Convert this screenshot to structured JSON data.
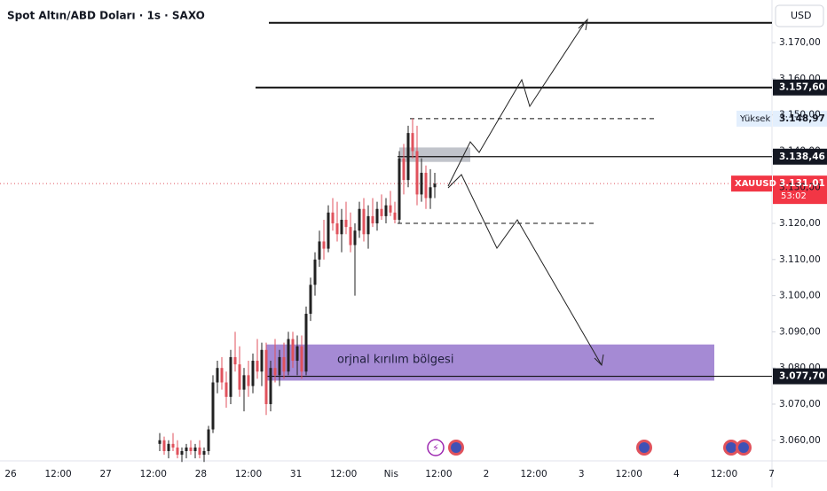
{
  "chart_data": {
    "type": "candlestick",
    "title": "Spot Altın/ABD Doları · 1s · SAXO",
    "currency": "USD",
    "up_color": "#222222",
    "down_color": "#e0525c",
    "open": [
      3059,
      3060,
      3057,
      3059,
      3058,
      3056,
      3057,
      3058,
      3057,
      3058,
      3056,
      3057,
      3063,
      3076,
      3080,
      3076,
      3072,
      3083,
      3081,
      3074,
      3078,
      3075,
      3082,
      3079,
      3085,
      3070,
      3080,
      3078,
      3083,
      3079,
      3088,
      3082,
      3086,
      3079,
      3095,
      3103,
      3110,
      3115,
      3113,
      3123,
      3120,
      3117,
      3121,
      3119,
      3114,
      3118,
      3124,
      3117,
      3122,
      3120,
      3124,
      3122,
      3125,
      3123,
      3121,
      3138,
      3132,
      3145,
      3140,
      3128,
      3134,
      3127,
      3130
    ],
    "high": [
      3062,
      3061,
      3060,
      3062,
      3060,
      3058,
      3059,
      3060,
      3059,
      3060,
      3058,
      3064,
      3078,
      3082,
      3083,
      3079,
      3085,
      3090,
      3086,
      3080,
      3082,
      3084,
      3088,
      3087,
      3087,
      3082,
      3088,
      3085,
      3087,
      3090,
      3090,
      3089,
      3089,
      3097,
      3105,
      3112,
      3118,
      3121,
      3125,
      3127,
      3126,
      3124,
      3126,
      3123,
      3120,
      3126,
      3127,
      3125,
      3127,
      3126,
      3128,
      3127,
      3129,
      3126,
      3140,
      3142,
      3147,
      3149,
      3147,
      3138,
      3136,
      3135,
      3134
    ],
    "low": [
      3057,
      3056,
      3055,
      3057,
      3055,
      3054,
      3055,
      3056,
      3055,
      3055,
      3054,
      3056,
      3062,
      3073,
      3074,
      3069,
      3070,
      3079,
      3072,
      3068,
      3072,
      3073,
      3077,
      3075,
      3067,
      3068,
      3076,
      3075,
      3077,
      3078,
      3080,
      3078,
      3077,
      3078,
      3093,
      3100,
      3108,
      3110,
      3112,
      3118,
      3115,
      3112,
      3117,
      3112,
      3100,
      3116,
      3115,
      3113,
      3119,
      3118,
      3121,
      3120,
      3122,
      3120,
      3120,
      3128,
      3130,
      3138,
      3125,
      3126,
      3124,
      3124,
      3127
    ],
    "close": [
      3060,
      3057,
      3059,
      3058,
      3056,
      3057,
      3058,
      3057,
      3058,
      3056,
      3057,
      3063,
      3076,
      3080,
      3076,
      3072,
      3083,
      3081,
      3074,
      3078,
      3075,
      3082,
      3079,
      3085,
      3070,
      3080,
      3078,
      3083,
      3079,
      3088,
      3082,
      3086,
      3079,
      3095,
      3103,
      3110,
      3115,
      3113,
      3123,
      3120,
      3117,
      3121,
      3119,
      3114,
      3118,
      3124,
      3117,
      3122,
      3120,
      3124,
      3122,
      3125,
      3123,
      3121,
      3138,
      3132,
      3145,
      3140,
      3128,
      3134,
      3127,
      3130,
      3131
    ],
    "ylim": [
      3054.3,
      3181.8
    ],
    "yticks": [
      {
        "value": 3060,
        "label": "3.060,00"
      },
      {
        "value": 3070,
        "label": "3.070,00"
      },
      {
        "value": 3080,
        "label": "3.080,00"
      },
      {
        "value": 3090,
        "label": "3.090,00"
      },
      {
        "value": 3100,
        "label": "3.100,00"
      },
      {
        "value": 3110,
        "label": "3.110,00"
      },
      {
        "value": 3120,
        "label": "3.120,00"
      },
      {
        "value": 3130,
        "label": "3.130,00"
      },
      {
        "value": 3140,
        "label": "3.140,00"
      },
      {
        "value": 3150,
        "label": "3.150,00"
      },
      {
        "value": 3160,
        "label": "3.160,00"
      },
      {
        "value": 3170,
        "label": "3.170,00"
      }
    ],
    "x_labels": [
      "26",
      "12:00",
      "27",
      "12:00",
      "28",
      "12:00",
      "31",
      "12:00",
      "Nis",
      "12:00",
      "2",
      "12:00",
      "3",
      "12:00",
      "4",
      "12:00",
      "7"
    ],
    "levels": [
      3175.5,
      3157.6,
      3148.97,
      3138.46,
      3120,
      3077.7
    ],
    "current_price": 3131.01,
    "price_labels": [
      {
        "value": 3157.6,
        "label": "3.157,60"
      },
      {
        "value": 3148.97,
        "label": "3.148,97"
      },
      {
        "value": 3138.46,
        "label": "3.138,46"
      },
      {
        "value": 3131.01,
        "label": "3.131,01"
      },
      {
        "value": 3077.7,
        "label": "3.077,70"
      }
    ],
    "high_label": "Yüksek",
    "symbol": "XAUUSD",
    "countdown": "53:02",
    "zone": {
      "label": "orjnal kırılım bölgesi",
      "top": 3086.5,
      "bottom": 3076.5
    },
    "box": {
      "top": 3141,
      "bottom": 3137
    }
  }
}
